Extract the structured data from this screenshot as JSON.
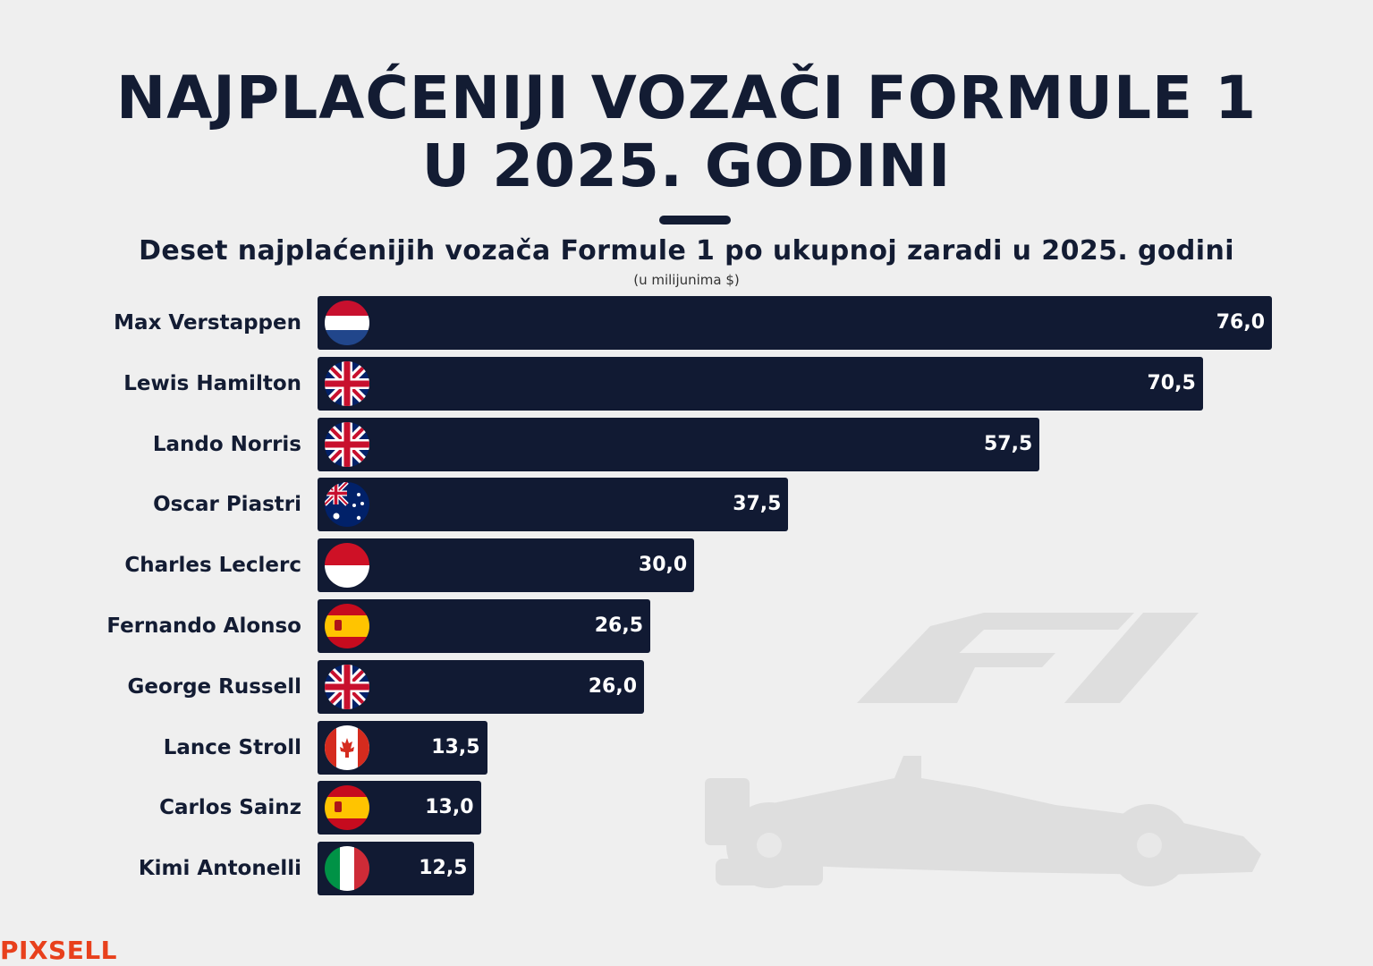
{
  "title_line1": "NAJPLAĆENIJI VOZAČI FORMULE 1",
  "title_line2": "U 2025. GODINI",
  "subtitle": "Deset najplaćenijih vozača Formule 1 po ukupnoj zaradi u 2025. godini",
  "unit_note": "(u milijunima $)",
  "brand": "PIXSELL",
  "colors": {
    "bar": "#111a33",
    "background": "#efefef",
    "brand": "#e8401c"
  },
  "chart_data": {
    "type": "bar",
    "orientation": "horizontal",
    "unit": "(u milijunima $)",
    "xlim": [
      0,
      76
    ],
    "categories": [
      "Max Verstappen",
      "Lewis Hamilton",
      "Lando Norris",
      "Oscar Piastri",
      "Charles Leclerc",
      "Fernando Alonso",
      "George Russell",
      "Lance Stroll",
      "Carlos Sainz",
      "Kimi Antonelli"
    ],
    "values": [
      76.0,
      70.5,
      57.5,
      37.5,
      30.0,
      26.5,
      26.0,
      13.5,
      13.0,
      12.5
    ],
    "value_labels": [
      "76,0",
      "70,5",
      "57,5",
      "37,5",
      "30,0",
      "26,5",
      "26,0",
      "13,5",
      "13,0",
      "12,5"
    ],
    "flags": [
      "netherlands-flag-icon",
      "uk-flag-icon",
      "uk-flag-icon",
      "australia-flag-icon",
      "monaco-flag-icon",
      "spain-flag-icon",
      "uk-flag-icon",
      "canada-flag-icon",
      "spain-flag-icon",
      "italy-flag-icon"
    ]
  }
}
